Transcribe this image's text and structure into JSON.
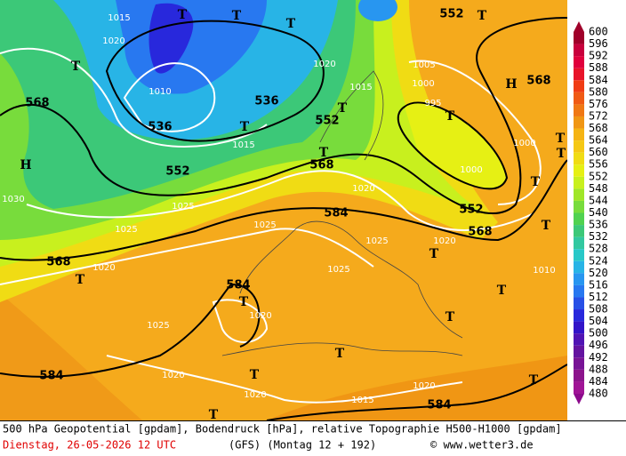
{
  "caption": {
    "line1": "500 hPa Geopotential [gpdam], Bodendruck [hPa], relative Topographie H500-H1000 [gpdam]",
    "date": "Dienstag, 26-05-2026  12 UTC",
    "model": "(GFS)  (Montag 12 + 192)",
    "credit": "© www.wetter3.de"
  },
  "colorbar": {
    "values": [
      600,
      596,
      592,
      588,
      584,
      580,
      576,
      572,
      568,
      564,
      560,
      556,
      552,
      548,
      544,
      540,
      536,
      532,
      528,
      524,
      520,
      516,
      512,
      508,
      504,
      500,
      496,
      492,
      488,
      484,
      480
    ],
    "colors": [
      "#a0002a",
      "#c8003c",
      "#e0003c",
      "#e8142a",
      "#f03c14",
      "#f05a14",
      "#f07814",
      "#f09614",
      "#f5b414",
      "#f5c814",
      "#f0dc14",
      "#e6f014",
      "#c8f01e",
      "#a0e628",
      "#78dc3c",
      "#50d250",
      "#3cc878",
      "#32c8a0",
      "#28c8c8",
      "#28b4e6",
      "#2896f0",
      "#2878f0",
      "#2850e6",
      "#2828dc",
      "#3214c8",
      "#5014b4",
      "#6414a0",
      "#781496",
      "#8c148c",
      "#a01496",
      "#8c0a8c"
    ]
  },
  "contour_labels": [
    "568",
    "536",
    "536",
    "552",
    "552",
    "568",
    "584",
    "568",
    "584",
    "584",
    "584",
    "552",
    "568",
    "568",
    "552"
  ],
  "isobar_labels": [
    "1015",
    "1020",
    "1010",
    "1015",
    "1020",
    "1015",
    "1005",
    "1000",
    "995",
    "1000",
    "1000",
    "1025",
    "1025",
    "1025",
    "1030",
    "1020",
    "1025",
    "1025",
    "1020",
    "1020",
    "1020",
    "1015",
    "1020",
    "1020",
    "1010",
    "1025",
    "1020"
  ],
  "pressure_centers": [
    "H",
    "H",
    "T",
    "T",
    "T",
    "T",
    "T",
    "T",
    "T",
    "T",
    "T",
    "T",
    "T",
    "T",
    "T",
    "T",
    "T",
    "T",
    "T",
    "T",
    "T",
    "T",
    "T",
    "T"
  ]
}
